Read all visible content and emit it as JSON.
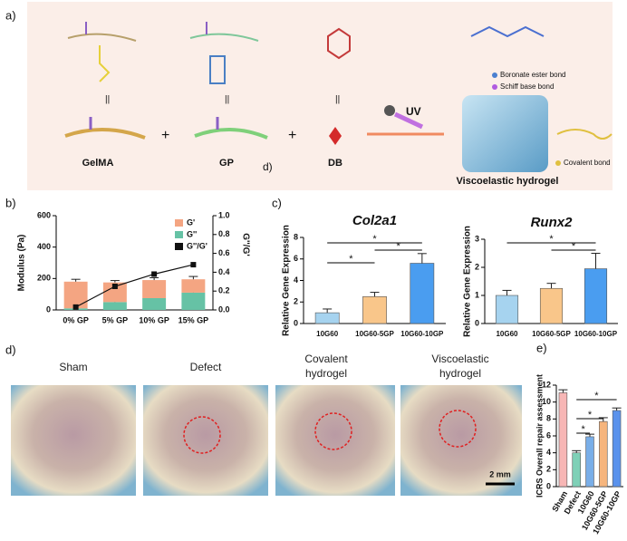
{
  "figure_a": {
    "label": "a)",
    "items": [
      "GelMA",
      "GP",
      "DB"
    ],
    "uv": "UV",
    "product": "Viscoelastic hydrogel",
    "bonds": [
      "Boronate ester bond",
      "Schiff base bond",
      "Covalent bond"
    ],
    "stray_label": "d)"
  },
  "photos": {
    "label": "d)",
    "captions": [
      "Sham",
      "Defect",
      "Covalent hydrogel",
      "Viscoelastic hydrogel"
    ],
    "scale_bar": "2 mm"
  },
  "chart_data": [
    {
      "type": "bar-line",
      "panel_label": "b)",
      "categories": [
        "0% GP",
        "5% GP",
        "10% GP",
        "15% GP"
      ],
      "series": [
        {
          "name": "G'",
          "color": "#f4a582",
          "values": [
            170,
            125,
            115,
            85
          ],
          "errors": [
            15,
            12,
            15,
            18
          ]
        },
        {
          "name": "G''",
          "color": "#66c2a5",
          "values": [
            10,
            50,
            75,
            110
          ],
          "errors": [
            5,
            8,
            10,
            25
          ]
        },
        {
          "name": "G''/G'",
          "type": "line",
          "axis": "y2",
          "color": "#111111",
          "values": [
            0.03,
            0.25,
            0.38,
            0.48
          ]
        }
      ],
      "ylabel": "Modulus (Pa)",
      "y2label": "G''/G'",
      "ylim": [
        0,
        600
      ],
      "yticks": [
        0,
        200,
        400,
        600
      ],
      "y2lim": [
        0,
        1
      ],
      "y2ticks": [
        {
          "value": 0,
          "label": "0.0"
        },
        0.2,
        0.4,
        0.6,
        0.8,
        {
          "value": 1,
          "label": "1.0"
        }
      ],
      "legend": "upper right"
    },
    {
      "type": "bar",
      "panel_label": "c)",
      "title": "Col2a1",
      "categories": [
        "10G60",
        "10G60-5GP",
        "10G60-10GP"
      ],
      "values": [
        1.0,
        2.5,
        5.6
      ],
      "errors": [
        0.35,
        0.4,
        0.9
      ],
      "colors": [
        "#a6d3ef",
        "#f9c68a",
        "#4a9df0"
      ],
      "ylabel": "Relative Gene Expression",
      "ylim": [
        0,
        8
      ],
      "yticks": [
        0,
        2,
        4,
        6,
        8
      ],
      "annotations": [
        "*",
        "*",
        "*"
      ]
    },
    {
      "type": "bar",
      "title": "Runx2",
      "categories": [
        "10G60",
        "10G60-5GP",
        "10G60-10GP"
      ],
      "values": [
        1.0,
        1.25,
        1.95
      ],
      "errors": [
        0.18,
        0.18,
        0.55
      ],
      "colors": [
        "#a6d3ef",
        "#f9c68a",
        "#4a9df0"
      ],
      "ylabel": "Relative Gene Expression",
      "ylim": [
        0,
        3
      ],
      "yticks": [
        0,
        1,
        2,
        3
      ],
      "annotations": [
        "*",
        "*"
      ]
    },
    {
      "type": "bar",
      "panel_label": "e)",
      "categories": [
        "Sham",
        "Defect",
        "10G60",
        "10G60-5GP",
        "10G60-10GP"
      ],
      "values": [
        11.1,
        4.0,
        5.9,
        7.7,
        9.0
      ],
      "errors": [
        0.35,
        0.25,
        0.3,
        0.45,
        0.3
      ],
      "colors": [
        "#f7b6b5",
        "#7fd0b7",
        "#79aee8",
        "#f6b57d",
        "#5a92ec"
      ],
      "ylabel": "ICRS Overall repair assessment",
      "ylim": [
        0,
        12
      ],
      "yticks": [
        0,
        2,
        4,
        6,
        8,
        10,
        12
      ],
      "annotations": [
        "*",
        "*",
        "*"
      ]
    }
  ]
}
